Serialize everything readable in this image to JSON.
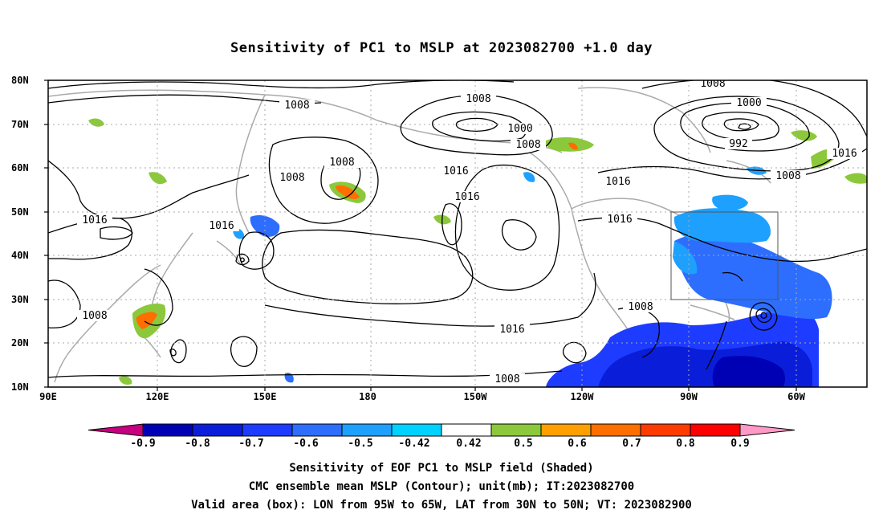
{
  "title": "Sensitivity of PC1 to MSLP at 2023082700 +1.0 day",
  "map": {
    "lat_labels": [
      "80N",
      "70N",
      "60N",
      "50N",
      "40N",
      "30N",
      "20N",
      "10N"
    ],
    "lon_labels": [
      "90E",
      "120E",
      "150E",
      "180",
      "150W",
      "120W",
      "90W",
      "60W"
    ],
    "contour_labels": [
      "1008",
      "1008",
      "1008",
      "1008",
      "1000",
      "1008",
      "1000",
      "992",
      "1008",
      "1016",
      "1016",
      "1016",
      "1016",
      "1016",
      "1016",
      "1008",
      "1016",
      "1008",
      "1008",
      "1016",
      "1008"
    ],
    "valid_box": {
      "lon_from": "95W",
      "lon_to": "65W",
      "lat_from": "30N",
      "lat_to": "50N"
    }
  },
  "colorbar": {
    "labels": [
      "-0.9",
      "-0.8",
      "-0.7",
      "-0.6",
      "-0.5",
      "-0.42",
      "0.42",
      "0.5",
      "0.6",
      "0.7",
      "0.8",
      "0.9"
    ],
    "colors": [
      "#c6007e",
      "#0000b4",
      "#0a1eda",
      "#1e3cff",
      "#2d6eff",
      "#1ea0ff",
      "#00d2ff",
      "#ffffff",
      "#8cc83c",
      "#ffa000",
      "#ff6e00",
      "#ff3c00",
      "#ff0000",
      "#ff9ac8"
    ]
  },
  "footer": {
    "line1": "Sensitivity of EOF PC1 to MSLP field (Shaded)",
    "line2": "CMC ensemble mean MSLP (Contour); unit(mb); IT:2023082700",
    "line3": "Valid area (box): LON from 95W to 65W, LAT from 30N to 50N; VT: 2023082900"
  }
}
